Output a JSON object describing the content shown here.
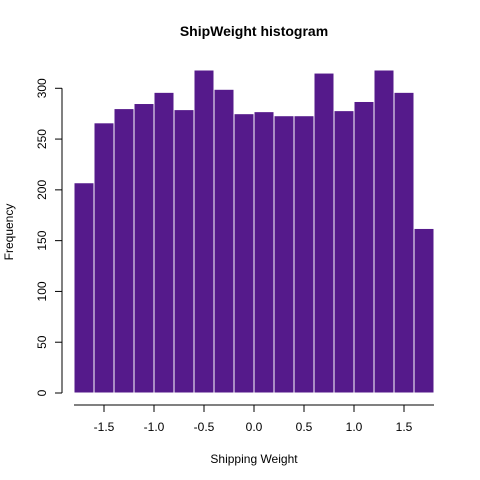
{
  "chart_data": {
    "type": "bar",
    "title": "ShipWeight histogram",
    "xlabel": "Shipping Weight",
    "ylabel": "Frequency",
    "bin_width": 0.2,
    "x_start": -1.8,
    "x": [
      -1.7,
      -1.5,
      -1.3,
      -1.1,
      -0.9,
      -0.7,
      -0.5,
      -0.3,
      -0.1,
      0.1,
      0.3,
      0.5,
      0.7,
      0.9,
      1.1,
      1.3,
      1.5,
      1.7
    ],
    "values": [
      207,
      266,
      280,
      285,
      296,
      279,
      318,
      299,
      275,
      277,
      273,
      273,
      315,
      278,
      287,
      318,
      296,
      162
    ],
    "xlim": [
      -1.8,
      1.8
    ],
    "ylim": [
      0,
      318
    ],
    "xticks": [
      -1.5,
      -1.0,
      -0.5,
      0.0,
      0.5,
      1.0,
      1.5
    ],
    "xtick_labels": [
      "-1.5",
      "-1.0",
      "-0.5",
      "0.0",
      "0.5",
      "1.0",
      "1.5"
    ],
    "yticks": [
      0,
      50,
      100,
      150,
      200,
      250,
      300
    ],
    "ytick_labels": [
      "0",
      "50",
      "100",
      "150",
      "200",
      "250",
      "300"
    ],
    "bar_color": "#551a8b",
    "grid": false,
    "legend": "none"
  }
}
